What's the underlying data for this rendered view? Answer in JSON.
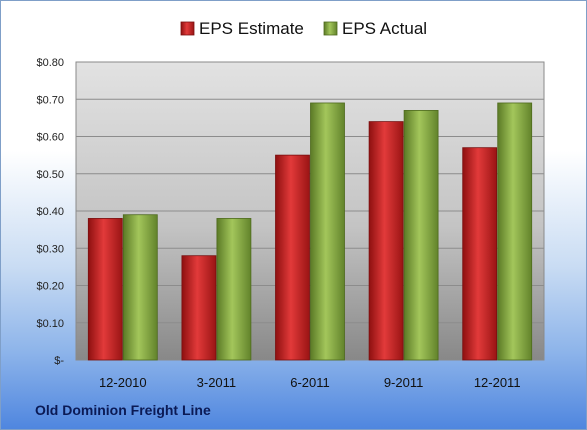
{
  "chart_data": {
    "type": "bar",
    "categories": [
      "12-2010",
      "3-2011",
      "6-2011",
      "9-2011",
      "12-2011"
    ],
    "series": [
      {
        "name": "EPS Estimate",
        "values": [
          0.38,
          0.28,
          0.55,
          0.64,
          0.57
        ],
        "color": "#d42a2a"
      },
      {
        "name": "EPS Actual",
        "values": [
          0.39,
          0.38,
          0.69,
          0.67,
          0.69
        ],
        "color": "#8fb547"
      }
    ],
    "yticks": [
      {
        "value": 0,
        "label": "$-"
      },
      {
        "value": 0.1,
        "label": "$0.10"
      },
      {
        "value": 0.2,
        "label": "$0.20"
      },
      {
        "value": 0.3,
        "label": "$0.30"
      },
      {
        "value": 0.4,
        "label": "$0.40"
      },
      {
        "value": 0.5,
        "label": "$0.50"
      },
      {
        "value": 0.6,
        "label": "$0.60"
      },
      {
        "value": 0.7,
        "label": "$0.70"
      },
      {
        "value": 0.8,
        "label": "$0.80"
      }
    ],
    "ylim": [
      0,
      0.8
    ],
    "grid": true,
    "legend": "top-center"
  },
  "footer": {
    "title": "Old Dominion Freight Line"
  }
}
